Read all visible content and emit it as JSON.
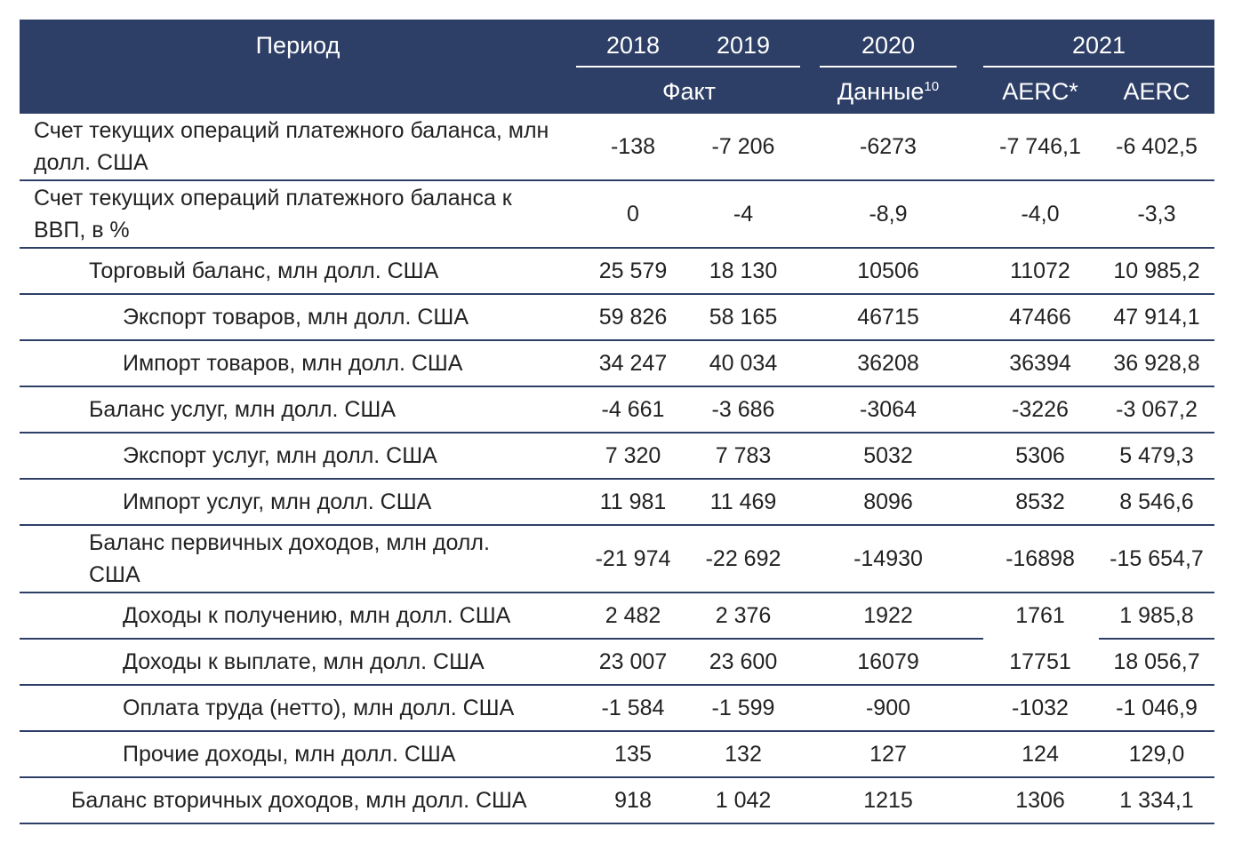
{
  "header": {
    "period_label": "Период",
    "years": [
      "2018",
      "2019",
      "2020",
      "2021"
    ],
    "fact_label": "Факт",
    "data_label": "Данные",
    "data_sup": "10",
    "aerc_star_label": "AERC*",
    "aerc_label": "AERC"
  },
  "rows": [
    {
      "label": "Счет текущих операций платежного баланса, млн долл. США",
      "values": [
        "-138",
        "-7 206",
        "-6273",
        "-7 746,1",
        "-6 402,5"
      ]
    },
    {
      "label": "Счет текущих операций платежного баланса к ВВП, в %",
      "values": [
        "0",
        "-4",
        "-8,9",
        "-4,0",
        "-3,3"
      ]
    },
    {
      "label": "Торговый баланс, млн долл. США",
      "values": [
        "25 579",
        "18 130",
        "10506",
        "11072",
        "10 985,2"
      ]
    },
    {
      "label": "Экспорт товаров, млн долл. США",
      "values": [
        "59 826",
        "58 165",
        "46715",
        "47466",
        "47 914,1"
      ]
    },
    {
      "label": "Импорт товаров, млн долл. США",
      "values": [
        "34 247",
        "40 034",
        "36208",
        "36394",
        "36 928,8"
      ]
    },
    {
      "label": "Баланс услуг, млн долл. США",
      "values": [
        "-4 661",
        "-3 686",
        "-3064",
        "-3226",
        "-3 067,2"
      ]
    },
    {
      "label": "Экспорт услуг, млн долл. США",
      "values": [
        "7 320",
        "7 783",
        "5032",
        "5306",
        "5 479,3"
      ]
    },
    {
      "label": "Импорт услуг, млн долл. США",
      "values": [
        "11 981",
        "11 469",
        "8096",
        "8532",
        "8 546,6"
      ]
    },
    {
      "label": "Баланс первичных доходов, млн долл. США",
      "values": [
        "-21 974",
        "-22 692",
        "-14930",
        "-16898",
        "-15 654,7"
      ]
    },
    {
      "label": "Доходы к получению, млн долл. США",
      "values": [
        "2 482",
        "2 376",
        "1922",
        "1761",
        "1 985,8"
      ]
    },
    {
      "label": "Доходы к выплате, млн долл. США",
      "values": [
        "23 007",
        "23 600",
        "16079",
        "17751",
        "18 056,7"
      ]
    },
    {
      "label": "Оплата труда (нетто), млн долл. США",
      "values": [
        "-1 584",
        "-1 599",
        "-900",
        "-1032",
        "-1 046,9"
      ]
    },
    {
      "label": "Прочие доходы, млн долл. США",
      "values": [
        "135",
        "132",
        "127",
        "124",
        "129,0"
      ]
    },
    {
      "label": "Баланс вторичных доходов, млн долл. США",
      "values": [
        "918",
        "1 042",
        "1215",
        "1306",
        "1 334,1"
      ]
    }
  ],
  "colors": {
    "header_bg": "#2e3f67",
    "header_text": "#ffffff",
    "body_text": "#222222",
    "rule": "#2e3f67"
  }
}
